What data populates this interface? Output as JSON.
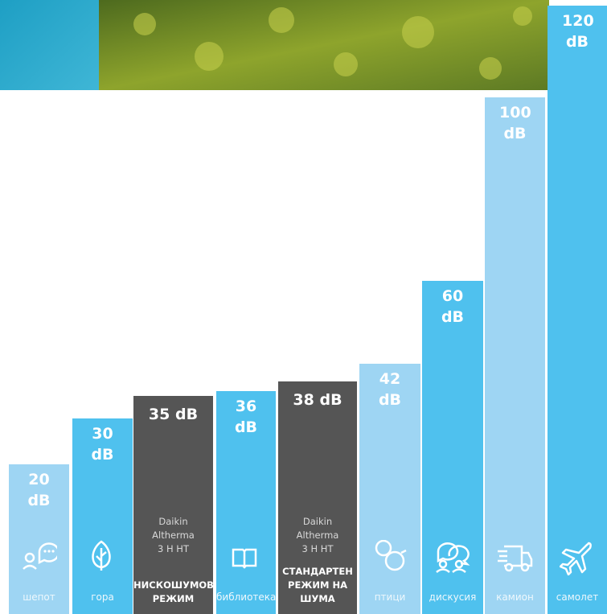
{
  "chart_data": {
    "type": "bar",
    "categories": [
      "шепот",
      "гора",
      "НИСКОШУМОВ РЕЖИМ",
      "библиотека",
      "СТАНДАРТЕН РЕЖИМ НА ШУМА",
      "птици",
      "дискусия",
      "камион",
      "самолет"
    ],
    "values": [
      20,
      30,
      35,
      36,
      38,
      42,
      60,
      100,
      120
    ],
    "value_labels": [
      "20 dB",
      "30 dB",
      "35 dB",
      "36 dB",
      "38 dB",
      "42 dB",
      "60 dB",
      "100 dB",
      "120 dB"
    ],
    "bar_notes": [
      null,
      null,
      "Daikin Altherma 3 H HT",
      null,
      "Daikin Altherma 3 H HT",
      null,
      null,
      null,
      null
    ],
    "colors": [
      "#9ed5f3",
      "#4fc1ee",
      "#555555",
      "#4fc1ee",
      "#555555",
      "#9ed5f3",
      "#4fc1ee",
      "#9ed5f3",
      "#4fc1ee"
    ]
  }
}
